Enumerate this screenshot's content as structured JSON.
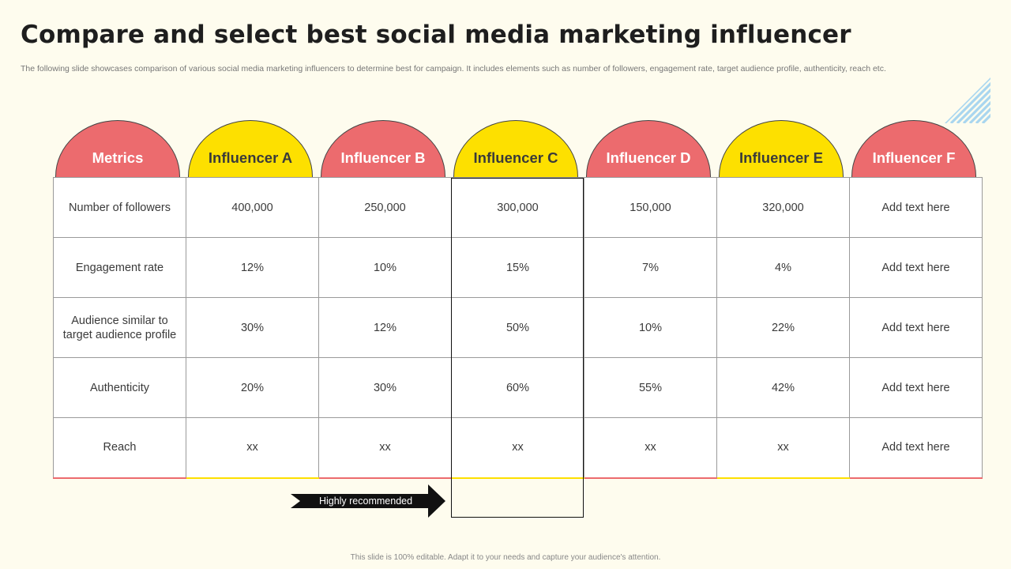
{
  "slide": {
    "title": "Compare and select best social media marketing influencer",
    "subtitle": "The following slide showcases comparison of various social media marketing influencers to determine best for campaign. It includes elements such as number of followers, engagement rate, target audience profile, authenticity, reach etc.",
    "footer": "This slide is 100% editable.  Adapt it to your needs and capture your audience's attention."
  },
  "colors": {
    "red": "#ec6b6e",
    "yellow": "#fde000",
    "background": "#fefcee"
  },
  "table": {
    "headers": [
      "Metrics",
      "Influencer A",
      "Influencer B",
      "Influencer C",
      "Influencer D",
      "Influencer E",
      "Influencer F"
    ],
    "rows": [
      [
        "Number of followers",
        "400,000",
        "250,000",
        "300,000",
        "150,000",
        "320,000",
        "Add text here"
      ],
      [
        "Engagement rate",
        "12%",
        "10%",
        "15%",
        "7%",
        "4%",
        "Add text here"
      ],
      [
        "Audience similar to target audience profile",
        "30%",
        "12%",
        "50%",
        "10%",
        "22%",
        "Add text here"
      ],
      [
        "Authenticity",
        "20%",
        "30%",
        "60%",
        "55%",
        "42%",
        "Add text here"
      ],
      [
        "Reach",
        "xx",
        "xx",
        "xx",
        "xx",
        "xx",
        "Add text here"
      ]
    ]
  },
  "callout": {
    "label": "Highly recommended"
  }
}
